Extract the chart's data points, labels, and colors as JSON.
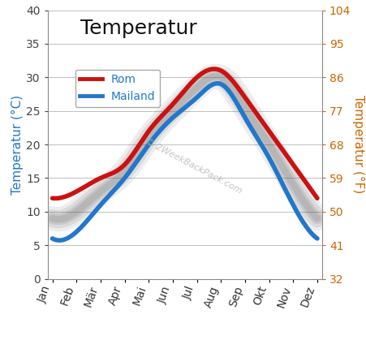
{
  "months": [
    "Jan",
    "Feb",
    "Mär",
    "Apr",
    "Mai",
    "Jun",
    "Jul",
    "Aug",
    "Sep",
    "Okt",
    "Nov",
    "Dez"
  ],
  "rom": [
    12,
    13,
    15,
    17,
    22,
    26,
    30,
    31,
    27,
    22,
    17,
    12
  ],
  "mailand": [
    6,
    7,
    11,
    15,
    20,
    24,
    27,
    29,
    24,
    18,
    11,
    6
  ],
  "title": "Temperatur",
  "ylabel_left": "Temperatur (°C)",
  "ylabel_right": "Temperatur (°F)",
  "legend_rom": "Rom",
  "legend_mailand": "Mailand",
  "watermark": "© 2WeekBackPack.com",
  "ylim_left": [
    0,
    40
  ],
  "ylim_right": [
    32,
    104
  ],
  "yticks_left": [
    0,
    5,
    10,
    15,
    20,
    25,
    30,
    35,
    40
  ],
  "yticks_right": [
    32,
    41,
    50,
    59,
    68,
    77,
    86,
    95,
    104
  ],
  "color_rom": "#cc1111",
  "color_mailand": "#2277cc",
  "color_shadow": "#555555",
  "color_title": "#111111",
  "color_ylabel_left": "#2277cc",
  "color_ylabel_right": "#cc6600",
  "color_yticks_right": "#cc6600",
  "color_yticks_left": "#444444",
  "color_xticks": "#333333",
  "bg_color": "#ffffff",
  "line_width": 4.0,
  "shadow_alpha": 0.38,
  "shadow_linewidth": 14,
  "title_fontsize": 18,
  "axis_label_fontsize": 11,
  "tick_fontsize": 10,
  "legend_fontsize": 10
}
